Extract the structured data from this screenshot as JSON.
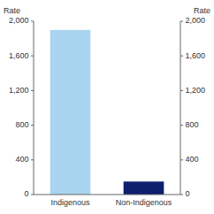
{
  "chart_data": {
    "type": "bar",
    "categories": [
      "Indigenous",
      "Non-Indigenous"
    ],
    "values": [
      1900,
      150
    ],
    "colors": [
      "#a8d4f0",
      "#0d1f6e"
    ],
    "ylabel": "Rate",
    "y2label": "Rate",
    "ylim": [
      0,
      2000
    ],
    "yticks": [
      0,
      400,
      800,
      {
        "value": 1200,
        "label": "1,200"
      },
      {
        "value": 1600,
        "label": "1,600"
      },
      {
        "value": 2000,
        "label": "2,000"
      }
    ],
    "y2lim": [
      0,
      2000
    ],
    "y2ticks": [
      0,
      400,
      800,
      {
        "value": 1200,
        "label": "1,200"
      },
      {
        "value": 1600,
        "label": "1,600"
      },
      {
        "value": 2000,
        "label": "2,000"
      }
    ],
    "grid": false
  }
}
